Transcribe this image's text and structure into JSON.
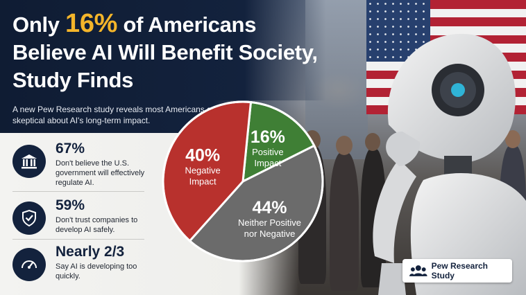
{
  "headline": {
    "prefix": "Only ",
    "highlight": "16%",
    "rest": " of Americans Believe AI Will Benefit Society, Study Finds"
  },
  "subtitle": "A new Pew Research study reveals most Americans are skeptical about AI's long-term impact.",
  "stats": [
    {
      "value": "67%",
      "description": "Don't believe the U.S. government will effectively regulate AI.",
      "icon": "government-building-icon"
    },
    {
      "value": "59%",
      "description": "Don't trust companies to develop AI safely.",
      "icon": "shield-check-icon"
    },
    {
      "value": "Nearly 2/3",
      "description": "Say AI is developing too quickly.",
      "icon": "speedometer-icon"
    }
  ],
  "chart_data": {
    "type": "pie",
    "slices": [
      {
        "label": "Negative Impact",
        "value": 40,
        "value_text": "40%",
        "label_lines": [
          "Negative",
          "Impact"
        ],
        "color": "#b8312d"
      },
      {
        "label": "Positive Impact",
        "value": 16,
        "value_text": "16%",
        "label_lines": [
          "Positive",
          "Impact"
        ],
        "color": "#3f7f35"
      },
      {
        "label": "Neither Positive nor Negative",
        "value": 44,
        "value_text": "44%",
        "label_lines": [
          "Neither Positive",
          "nor Negative"
        ],
        "color": "#6b6b6b"
      }
    ]
  },
  "badge": {
    "text": "Pew Research Study",
    "icon": "people-icon"
  },
  "colors": {
    "navy": "#13223d",
    "accent": "#f4b52a",
    "negative": "#b8312d",
    "positive": "#3f7f35",
    "neutral": "#6b6b6b"
  }
}
